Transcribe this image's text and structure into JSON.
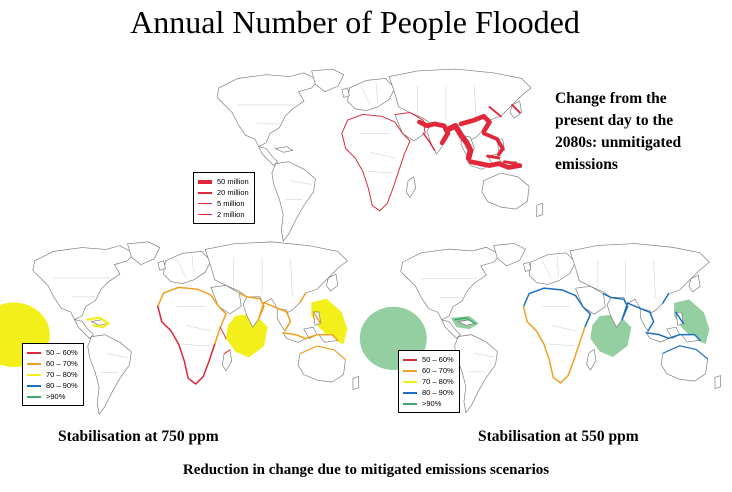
{
  "title": "Annual Number of People Flooded",
  "description_lines": [
    "Change from the",
    "present day to the",
    "2080s: unmitigated",
    "emissions"
  ],
  "top_legend": {
    "items": [
      {
        "label": "50 million",
        "color": "#e0283a",
        "width": 4
      },
      {
        "label": "20 million",
        "color": "#e0283a",
        "width": 2.5
      },
      {
        "label": "5 million",
        "color": "#e0283a",
        "width": 1.2
      },
      {
        "label": "2 million",
        "color": "#e0283a",
        "width": 0.6
      }
    ]
  },
  "reduction_legend": {
    "items": [
      {
        "label": "50 – 60%",
        "color": "#e0283a"
      },
      {
        "label": "60 – 70%",
        "color": "#f0a020"
      },
      {
        "label": "70 – 80%",
        "color": "#f2ef1a"
      },
      {
        "label": "80 – 90%",
        "color": "#1a6fbf"
      },
      {
        "label": ">90%",
        "color": "#3da86a"
      }
    ]
  },
  "captions": {
    "left": "Stabilisation at 750 ppm",
    "right": "Stabilisation at 550 ppm"
  },
  "footer": "Reduction in change due to mitigated emissions scenarios"
}
